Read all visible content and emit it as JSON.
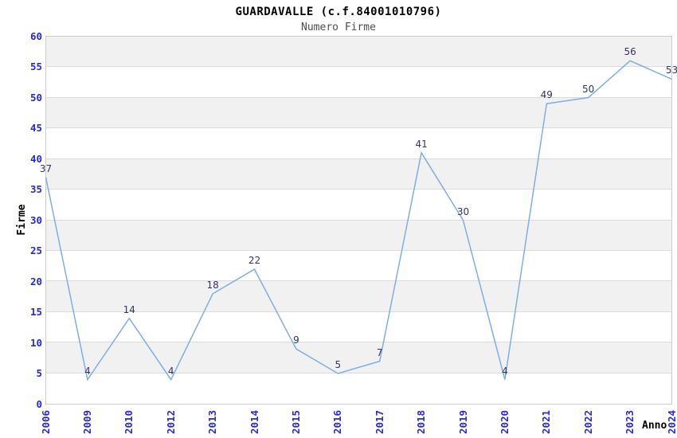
{
  "chart_data": {
    "type": "line",
    "title": "GUARDAVALLE (c.f.84001010796)",
    "subtitle": "Numero Firme",
    "xlabel": "Anno",
    "ylabel": "Firme",
    "categories": [
      "2006",
      "2009",
      "2010",
      "2012",
      "2013",
      "2014",
      "2015",
      "2016",
      "2017",
      "2018",
      "2019",
      "2020",
      "2021",
      "2022",
      "2023",
      "2024"
    ],
    "values": [
      37,
      4,
      14,
      4,
      18,
      22,
      9,
      5,
      7,
      41,
      30,
      4,
      49,
      50,
      56,
      53
    ],
    "ylim": [
      0,
      60
    ],
    "ytick_step": 5,
    "grid": true,
    "banded_background": true,
    "legend": false,
    "colors": {
      "line": "#7dafe4",
      "tick_label": "#2828d4",
      "data_label": "#333366",
      "band": "#f1f1f1",
      "gridline": "#dcdcdc",
      "plot_border": "#cccccc",
      "title": "#000000",
      "subtitle": "#4d4d4d",
      "axis_title": "#000000"
    }
  }
}
